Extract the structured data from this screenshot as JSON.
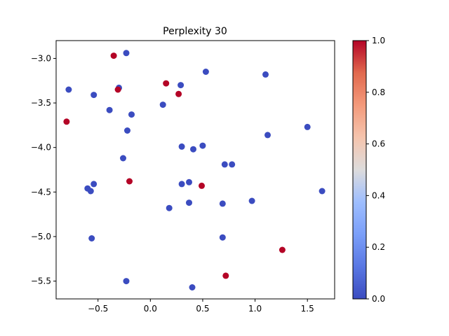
{
  "chart_data": {
    "type": "scatter",
    "title": "Perplexity 30",
    "xlabel": "",
    "ylabel": "",
    "xlim": [
      -0.9,
      1.76
    ],
    "ylim": [
      -5.7,
      -2.8
    ],
    "xticks": [
      -0.5,
      0.0,
      0.5,
      1.0,
      1.5
    ],
    "xtick_labels": [
      "−0.5",
      "0.0",
      "0.5",
      "1.0",
      "1.5"
    ],
    "yticks": [
      -5.5,
      -5.0,
      -4.5,
      -4.0,
      -3.5,
      -3.0
    ],
    "ytick_labels": [
      "−5.5",
      "−5.0",
      "−4.5",
      "−4.0",
      "−3.5",
      "−3.0"
    ],
    "grid": false,
    "colormap": "coolwarm",
    "color_low": "#3b4cc0",
    "color_high": "#b40426",
    "colorbar": {
      "range": [
        0.0,
        1.0
      ],
      "ticks": [
        0.0,
        0.2,
        0.4,
        0.6,
        0.8,
        1.0
      ],
      "tick_labels": [
        "0.0",
        "0.2",
        "0.4",
        "0.6",
        "0.8",
        "1.0"
      ]
    },
    "points": [
      {
        "x": -0.23,
        "y": -2.94,
        "v": 0
      },
      {
        "x": -0.35,
        "y": -2.97,
        "v": 1
      },
      {
        "x": -0.78,
        "y": -3.35,
        "v": 0
      },
      {
        "x": -0.54,
        "y": -3.41,
        "v": 0
      },
      {
        "x": -0.3,
        "y": -3.33,
        "v": 0
      },
      {
        "x": -0.31,
        "y": -3.35,
        "v": 1
      },
      {
        "x": 0.15,
        "y": -3.28,
        "v": 1
      },
      {
        "x": 0.29,
        "y": -3.3,
        "v": 0
      },
      {
        "x": 0.27,
        "y": -3.4,
        "v": 1
      },
      {
        "x": 0.53,
        "y": -3.15,
        "v": 0
      },
      {
        "x": 1.1,
        "y": -3.18,
        "v": 0
      },
      {
        "x": -0.39,
        "y": -3.58,
        "v": 0
      },
      {
        "x": -0.18,
        "y": -3.63,
        "v": 0
      },
      {
        "x": 0.12,
        "y": -3.52,
        "v": 0
      },
      {
        "x": -0.8,
        "y": -3.71,
        "v": 1
      },
      {
        "x": -0.22,
        "y": -3.81,
        "v": 0
      },
      {
        "x": 1.12,
        "y": -3.86,
        "v": 0
      },
      {
        "x": 1.5,
        "y": -3.77,
        "v": 0
      },
      {
        "x": 0.3,
        "y": -3.99,
        "v": 0
      },
      {
        "x": 0.41,
        "y": -4.02,
        "v": 0
      },
      {
        "x": 0.5,
        "y": -3.98,
        "v": 0
      },
      {
        "x": -0.26,
        "y": -4.12,
        "v": 0
      },
      {
        "x": 0.71,
        "y": -4.19,
        "v": 0
      },
      {
        "x": 0.78,
        "y": -4.19,
        "v": 0
      },
      {
        "x": -0.2,
        "y": -4.38,
        "v": 1
      },
      {
        "x": -0.54,
        "y": -4.41,
        "v": 0
      },
      {
        "x": -0.6,
        "y": -4.46,
        "v": 0
      },
      {
        "x": -0.57,
        "y": -4.49,
        "v": 0
      },
      {
        "x": 0.3,
        "y": -4.41,
        "v": 0
      },
      {
        "x": 0.37,
        "y": -4.39,
        "v": 0
      },
      {
        "x": 0.49,
        "y": -4.43,
        "v": 1
      },
      {
        "x": 1.64,
        "y": -4.49,
        "v": 0
      },
      {
        "x": 0.37,
        "y": -4.62,
        "v": 0
      },
      {
        "x": 0.69,
        "y": -4.63,
        "v": 0
      },
      {
        "x": 0.97,
        "y": -4.6,
        "v": 0
      },
      {
        "x": 0.18,
        "y": -4.68,
        "v": 0
      },
      {
        "x": -0.56,
        "y": -5.02,
        "v": 0
      },
      {
        "x": 0.69,
        "y": -5.01,
        "v": 0
      },
      {
        "x": 1.26,
        "y": -5.15,
        "v": 1
      },
      {
        "x": 0.72,
        "y": -5.44,
        "v": 1
      },
      {
        "x": -0.23,
        "y": -5.5,
        "v": 0
      },
      {
        "x": 0.4,
        "y": -5.57,
        "v": 0
      }
    ]
  }
}
